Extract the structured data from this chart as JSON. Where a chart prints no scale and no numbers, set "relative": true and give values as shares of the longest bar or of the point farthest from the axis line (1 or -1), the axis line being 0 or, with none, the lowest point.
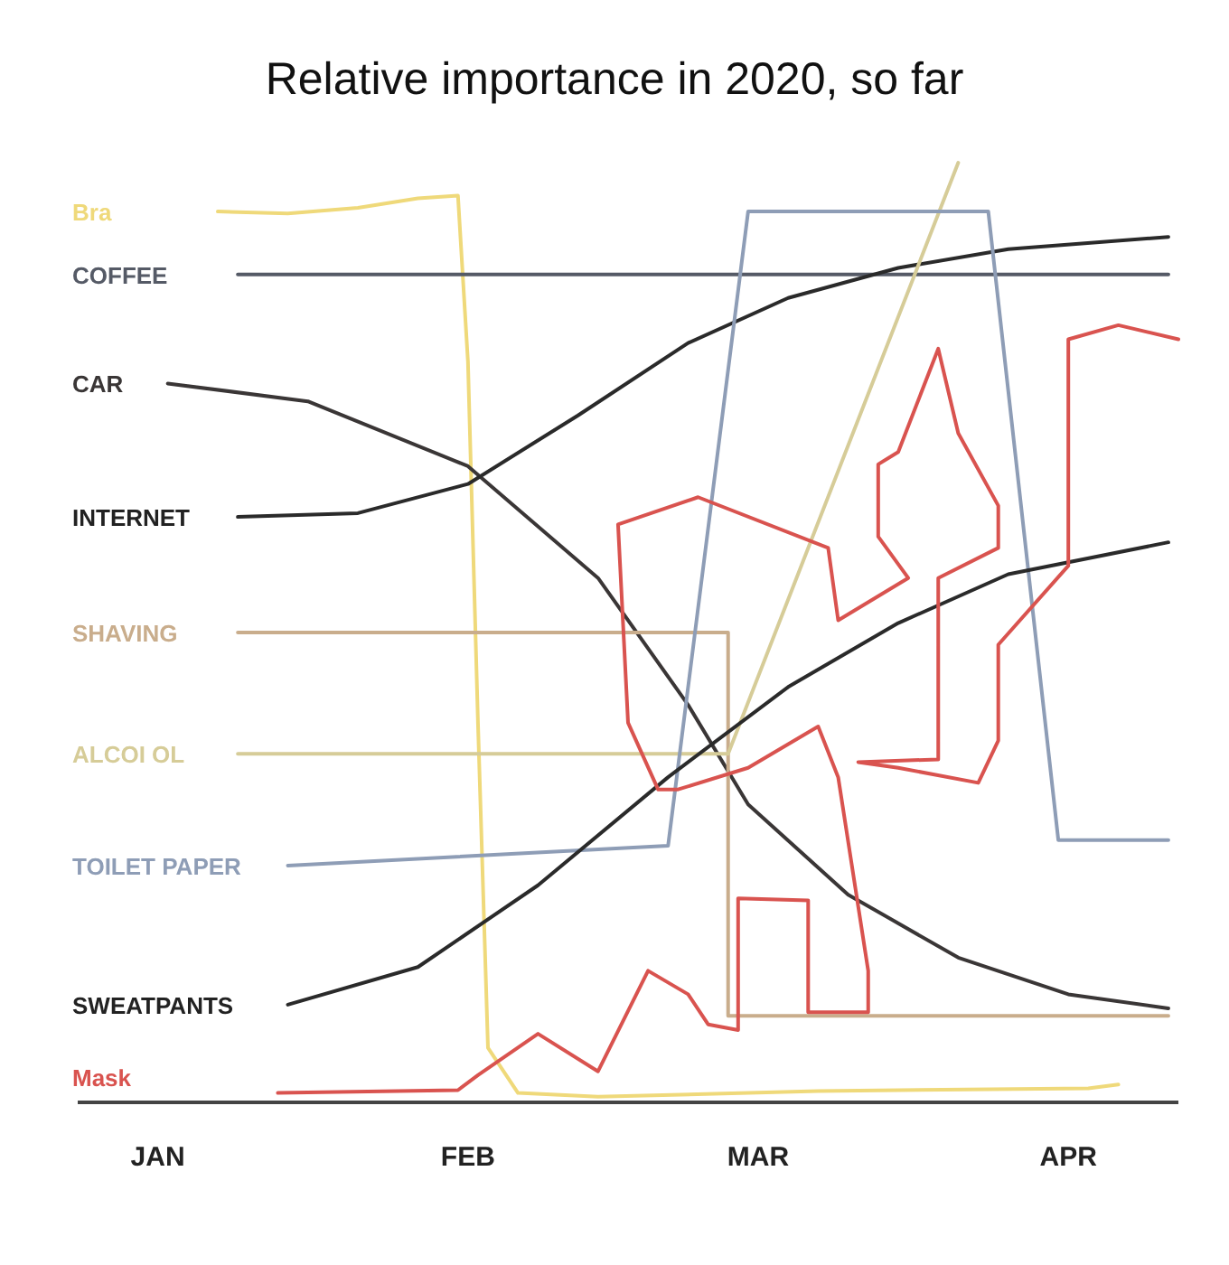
{
  "chart_data": {
    "type": "line",
    "title": "Relative importance in 2020, so far",
    "relative": true,
    "xlim": [
      "2019-12-24",
      "2020-04-12"
    ],
    "xticks": [
      {
        "value": "2020-01-01",
        "label": "JAN"
      },
      {
        "value": "2020-02-01",
        "label": "FEB"
      },
      {
        "value": "2020-03-01",
        "label": "MAR"
      },
      {
        "value": "2020-04-01",
        "label": "APR"
      }
    ],
    "grid": false,
    "series": [
      {
        "name": "Bra",
        "color": "#efd97a",
        "x": [
          "2020-01-07",
          "2020-01-14",
          "2020-01-21",
          "2020-01-27",
          "2020-01-31",
          "2020-02-01",
          "2020-02-02",
          "2020-02-03",
          "2020-02-06",
          "2020-02-14",
          "2020-03-07",
          "2020-04-03",
          "2020-04-06"
        ],
        "values": [
          0.948,
          0.946,
          0.952,
          0.962,
          0.965,
          0.788,
          0.404,
          0.058,
          0.01,
          0.006,
          0.012,
          0.015,
          0.019
        ]
      },
      {
        "name": "COFFEE",
        "color": "#555a66",
        "x": [
          "2020-01-09",
          "2020-04-11"
        ],
        "values": [
          0.881,
          0.881
        ]
      },
      {
        "name": "CAR",
        "color": "#3a3636",
        "x": [
          "2020-01-02",
          "2020-01-16",
          "2020-02-01",
          "2020-02-14",
          "2020-02-23",
          "2020-02-29",
          "2020-03-10",
          "2020-03-21",
          "2020-04-01",
          "2020-04-11"
        ],
        "values": [
          0.765,
          0.746,
          0.677,
          0.558,
          0.423,
          0.317,
          0.221,
          0.154,
          0.115,
          0.1
        ]
      },
      {
        "name": "INTERNET",
        "color": "#2a2a2a",
        "x": [
          "2020-01-09",
          "2020-01-21",
          "2020-02-01",
          "2020-02-12",
          "2020-02-23",
          "2020-03-04",
          "2020-03-15",
          "2020-03-26",
          "2020-04-11"
        ],
        "values": [
          0.623,
          0.627,
          0.658,
          0.731,
          0.808,
          0.856,
          0.888,
          0.908,
          0.921
        ]
      },
      {
        "name": "SHAVING",
        "color": "#c9ad8c",
        "x": [
          "2020-01-09",
          "2020-02-27",
          "2020-02-27",
          "2020-04-11"
        ],
        "values": [
          0.5,
          0.5,
          0.092,
          0.092
        ]
      },
      {
        "name": "ALCOI OL",
        "color": "#d6cc98",
        "x": [
          "2020-01-09",
          "2020-02-27",
          "2020-03-21"
        ],
        "values": [
          0.371,
          0.371,
          1
        ]
      },
      {
        "name": "TOILET PAPER",
        "color": "#8e9db6",
        "x": [
          "2020-01-14",
          "2020-02-21",
          "2020-02-29",
          "2020-03-24",
          "2020-03-31",
          "2020-04-11"
        ],
        "values": [
          0.252,
          0.273,
          0.948,
          0.948,
          0.279,
          0.279
        ]
      },
      {
        "name": "SWEATPANTS",
        "color": "#2a2a2a",
        "x": [
          "2020-01-14",
          "2020-01-27",
          "2020-02-08",
          "2020-02-21",
          "2020-03-04",
          "2020-03-15",
          "2020-03-26",
          "2020-04-11"
        ],
        "values": [
          0.104,
          0.144,
          0.231,
          0.346,
          0.442,
          0.51,
          0.562,
          0.596
        ]
      },
      {
        "name": "Mask",
        "color": "#d9534f",
        "x": [
          "2020-01-13",
          "2020-01-31",
          "2020-02-02",
          "2020-02-08",
          "2020-02-14",
          "2020-02-19",
          "2020-02-23",
          "2020-02-25",
          "2020-02-28",
          "2020-02-28",
          "2020-03-06",
          "2020-03-06",
          "2020-03-12",
          "2020-03-12",
          "2020-03-09",
          "2020-03-07",
          "2020-02-29",
          "2020-02-22",
          "2020-02-20",
          "2020-02-17",
          "2020-02-16",
          "2020-02-24",
          "2020-03-08",
          "2020-03-09",
          "2020-03-16",
          "2020-03-13",
          "2020-03-13",
          "2020-03-15",
          "2020-03-19",
          "2020-03-21",
          "2020-03-25",
          "2020-03-25",
          "2020-03-19",
          "2020-03-19",
          "2020-03-11",
          "2020-03-15",
          "2020-03-23",
          "2020-03-25",
          "2020-03-25",
          "2020-04-01",
          "2020-04-01",
          "2020-04-06",
          "2020-04-12"
        ],
        "values": [
          0.01,
          0.013,
          0.029,
          0.073,
          0.033,
          0.14,
          0.115,
          0.083,
          0.077,
          0.217,
          0.215,
          0.096,
          0.096,
          0.14,
          0.346,
          0.4,
          0.356,
          0.333,
          0.333,
          0.404,
          0.615,
          0.644,
          0.59,
          0.513,
          0.558,
          0.602,
          0.679,
          0.692,
          0.802,
          0.712,
          0.635,
          0.59,
          0.558,
          0.365,
          0.362,
          0.356,
          0.34,
          0.385,
          0.487,
          0.571,
          0.812,
          0.827,
          0.812
        ]
      }
    ]
  }
}
